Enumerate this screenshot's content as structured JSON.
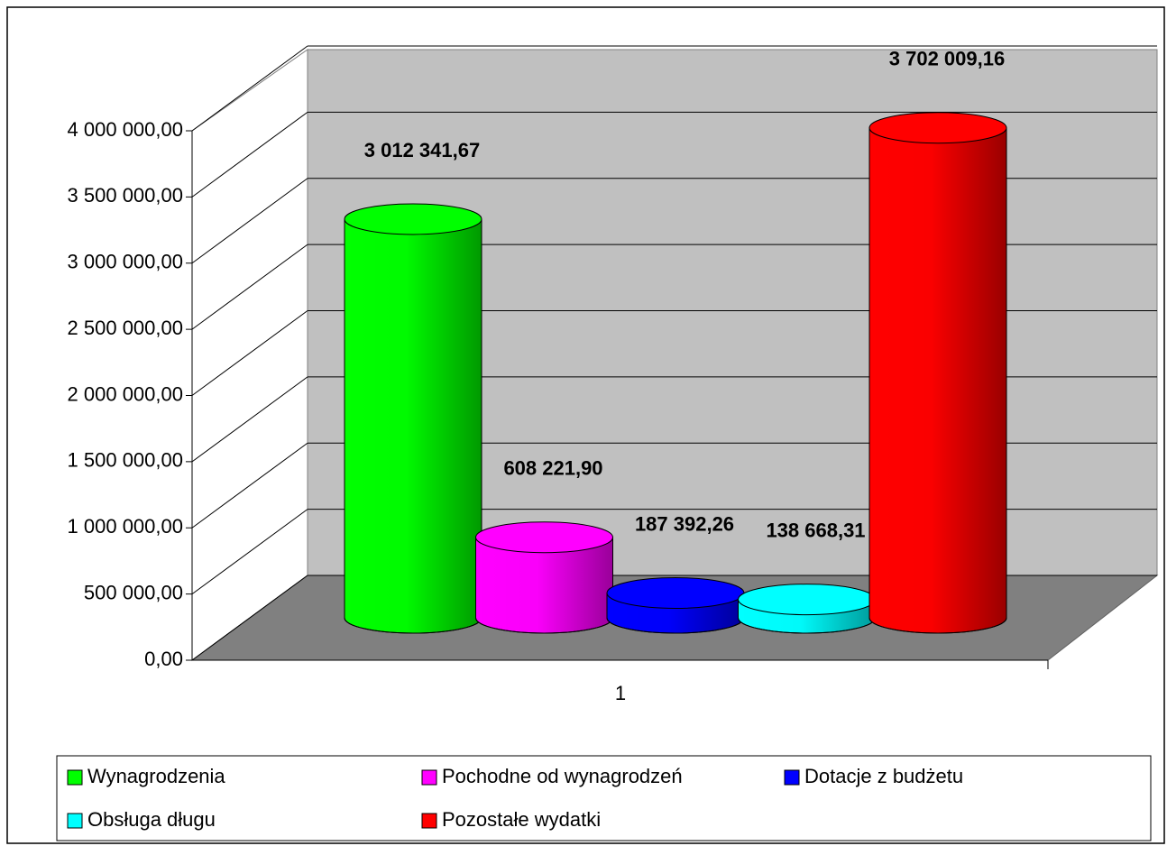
{
  "chart_data": {
    "type": "bar3d",
    "categories": [
      "1"
    ],
    "series": [
      {
        "name": "Wynagrodzenia",
        "color": "#00ff00",
        "values": [
          3012341.67
        ],
        "value_labels": [
          "3 012 341,67"
        ]
      },
      {
        "name": "Pochodne od wynagrodzeń",
        "color": "#ff00ff",
        "values": [
          608221.9
        ],
        "value_labels": [
          "608 221,90"
        ]
      },
      {
        "name": "Dotacje z budżetu",
        "color": "#0000ff",
        "values": [
          187392.26
        ],
        "value_labels": [
          "187 392,26"
        ]
      },
      {
        "name": "Obsługa długu",
        "color": "#00ffff",
        "values": [
          138668.31
        ],
        "value_labels": [
          "138 668,31"
        ]
      },
      {
        "name": "Pozostałe wydatki",
        "color": "#ff0000",
        "values": [
          3702009.16
        ],
        "value_labels": [
          "3 702 009,16"
        ]
      }
    ],
    "ylim": [
      0,
      4000000
    ],
    "yticks": [
      {
        "value": 0,
        "label": "0,00"
      },
      {
        "value": 500000,
        "label": "500 000,00"
      },
      {
        "value": 1000000,
        "label": "1 000 000,00"
      },
      {
        "value": 1500000,
        "label": "1 500 000,00"
      },
      {
        "value": 2000000,
        "label": "2 000 000,00"
      },
      {
        "value": 2500000,
        "label": "2 500 000,00"
      },
      {
        "value": 3000000,
        "label": "3 000 000,00"
      },
      {
        "value": 3500000,
        "label": "3 500 000,00"
      },
      {
        "value": 4000000,
        "label": "4 000 000,00"
      }
    ],
    "grid": true
  }
}
